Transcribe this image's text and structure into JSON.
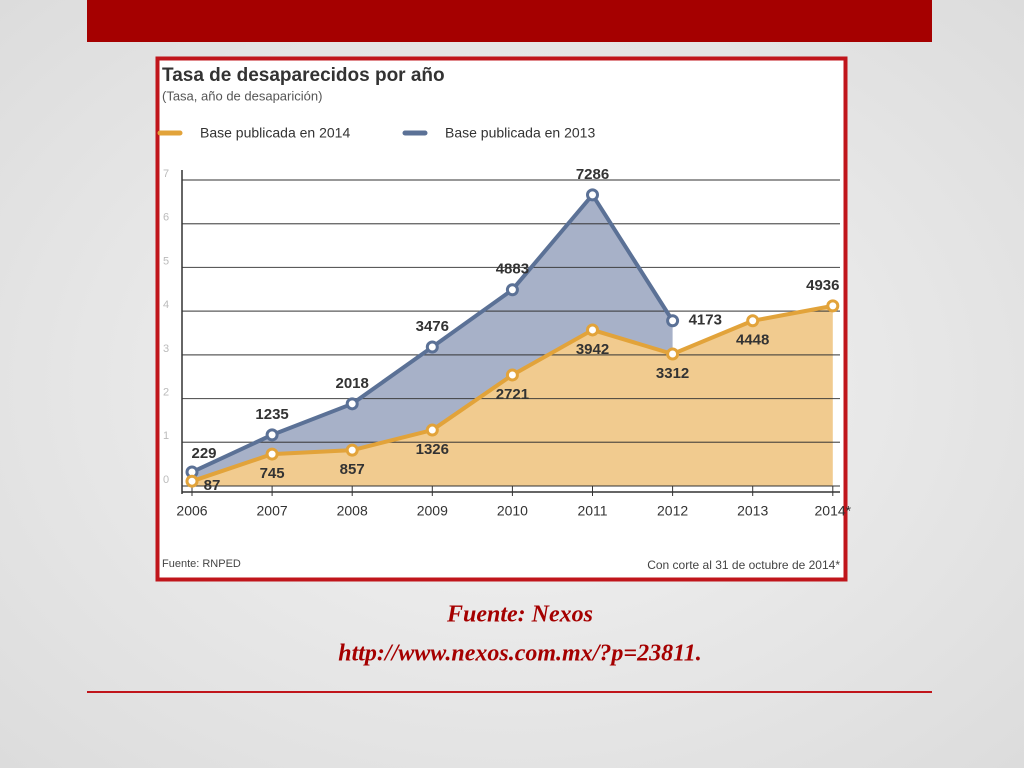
{
  "chart_data": {
    "type": "area",
    "title": "Tasa de desaparecidos por año",
    "subtitle": "(Tasa, año de desaparición)",
    "categories": [
      "2006",
      "2007",
      "2008",
      "2009",
      "2010",
      "2011",
      "2012",
      "2013",
      "2014*"
    ],
    "series": [
      {
        "name": "Base publicada en 2013",
        "color": "#5b7196",
        "fill": "#a7b1c8",
        "values": [
          0.32,
          1.17,
          1.88,
          3.18,
          4.49,
          6.66,
          3.78,
          null,
          null
        ],
        "labels": [
          229,
          1235,
          2018,
          3476,
          4883,
          7286,
          4173,
          null,
          null
        ]
      },
      {
        "name": "Base publicada en 2014",
        "color": "#e2a33a",
        "fill": "#f1cb8f",
        "values": [
          0.11,
          0.73,
          0.82,
          1.28,
          2.54,
          3.57,
          3.02,
          3.78,
          4.12
        ],
        "labels": [
          87,
          745,
          857,
          1326,
          2721,
          3942,
          3312,
          4448,
          4936
        ]
      }
    ],
    "legend_order": [
      1,
      0
    ],
    "ylim": [
      0,
      7
    ],
    "yticks": [
      0,
      1,
      2,
      3,
      4,
      5,
      6,
      7
    ],
    "grid": true,
    "source": "Fuente: RNPED",
    "note": "Con corte al 31 de octubre de 2014*"
  },
  "caption": {
    "source": "Fuente: Nexos",
    "url": "http://www.nexos.com.mx/?p=23811."
  }
}
